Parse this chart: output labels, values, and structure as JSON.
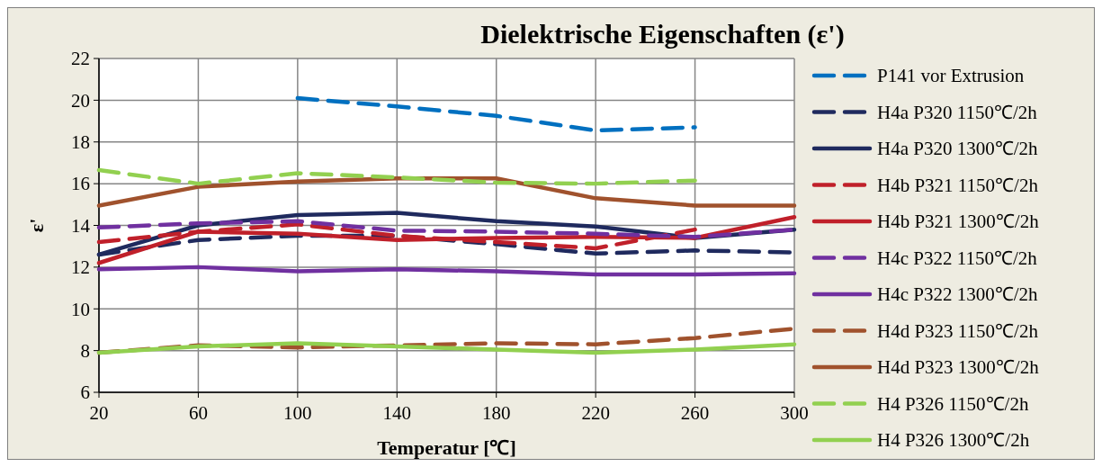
{
  "chart_data": {
    "type": "line",
    "title": "Dielektrische Eigenschaften (ε')",
    "xlabel": "Temperatur [℃]",
    "ylabel": "ε'",
    "x": [
      20,
      60,
      100,
      140,
      180,
      220,
      260,
      300
    ],
    "xlim": [
      20,
      300
    ],
    "xticks": [
      20,
      60,
      100,
      140,
      180,
      220,
      260,
      300
    ],
    "ylim": [
      6,
      22
    ],
    "yticks": [
      6,
      8,
      10,
      12,
      14,
      16,
      18,
      20,
      22
    ],
    "grid": true,
    "legend": "right",
    "series": [
      {
        "name": "P141 vor Extrusion",
        "color": "#0070c0",
        "line_style": "dashed",
        "values": [
          null,
          null,
          20.1,
          19.7,
          19.25,
          18.55,
          18.7,
          null
        ]
      },
      {
        "name": "H4a P320 1150℃/2h",
        "color": "#1f2a5e",
        "line_style": "dashed",
        "values": [
          12.6,
          13.3,
          13.5,
          13.5,
          13.1,
          12.65,
          12.8,
          12.7
        ]
      },
      {
        "name": "H4a P320 1300℃/2h",
        "color": "#1f2a5e",
        "line_style": "solid",
        "values": [
          12.6,
          14.0,
          14.5,
          14.6,
          14.2,
          13.95,
          13.4,
          13.8
        ]
      },
      {
        "name": "H4b P321 1150℃/2h",
        "color": "#c0202a",
        "line_style": "dashed",
        "values": [
          13.2,
          13.7,
          14.05,
          13.5,
          13.2,
          12.9,
          13.8,
          null
        ]
      },
      {
        "name": "H4b P321 1300℃/2h",
        "color": "#c0202a",
        "line_style": "solid",
        "values": [
          12.2,
          13.7,
          13.6,
          13.3,
          13.4,
          13.45,
          13.4,
          14.4
        ]
      },
      {
        "name": "H4c P322 1150℃/2h",
        "color": "#7030a0",
        "line_style": "dashed",
        "values": [
          13.9,
          14.1,
          14.2,
          13.75,
          13.7,
          13.6,
          13.45,
          13.8
        ]
      },
      {
        "name": "H4c P322 1300℃/2h",
        "color": "#7030a0",
        "line_style": "solid",
        "values": [
          11.9,
          12.0,
          11.8,
          11.9,
          11.8,
          11.65,
          11.65,
          11.7
        ]
      },
      {
        "name": "H4d P323 1150℃/2h",
        "color": "#a0522d",
        "line_style": "dashed",
        "values": [
          7.9,
          8.25,
          8.15,
          8.25,
          8.35,
          8.3,
          8.6,
          9.05
        ]
      },
      {
        "name": "H4d P323 1300℃/2h",
        "color": "#a0522d",
        "line_style": "solid",
        "values": [
          14.95,
          15.85,
          16.1,
          16.25,
          16.25,
          15.3,
          14.95,
          14.95
        ]
      },
      {
        "name": "H4 P326 1150℃/2h",
        "color": "#92d050",
        "line_style": "dashed",
        "values": [
          16.65,
          16.0,
          16.5,
          16.3,
          16.05,
          16.0,
          16.15,
          null
        ]
      },
      {
        "name": "H4 P326 1300℃/2h",
        "color": "#92d050",
        "line_style": "solid",
        "values": [
          7.9,
          8.2,
          8.35,
          8.2,
          8.05,
          7.9,
          8.05,
          8.3
        ]
      }
    ]
  }
}
